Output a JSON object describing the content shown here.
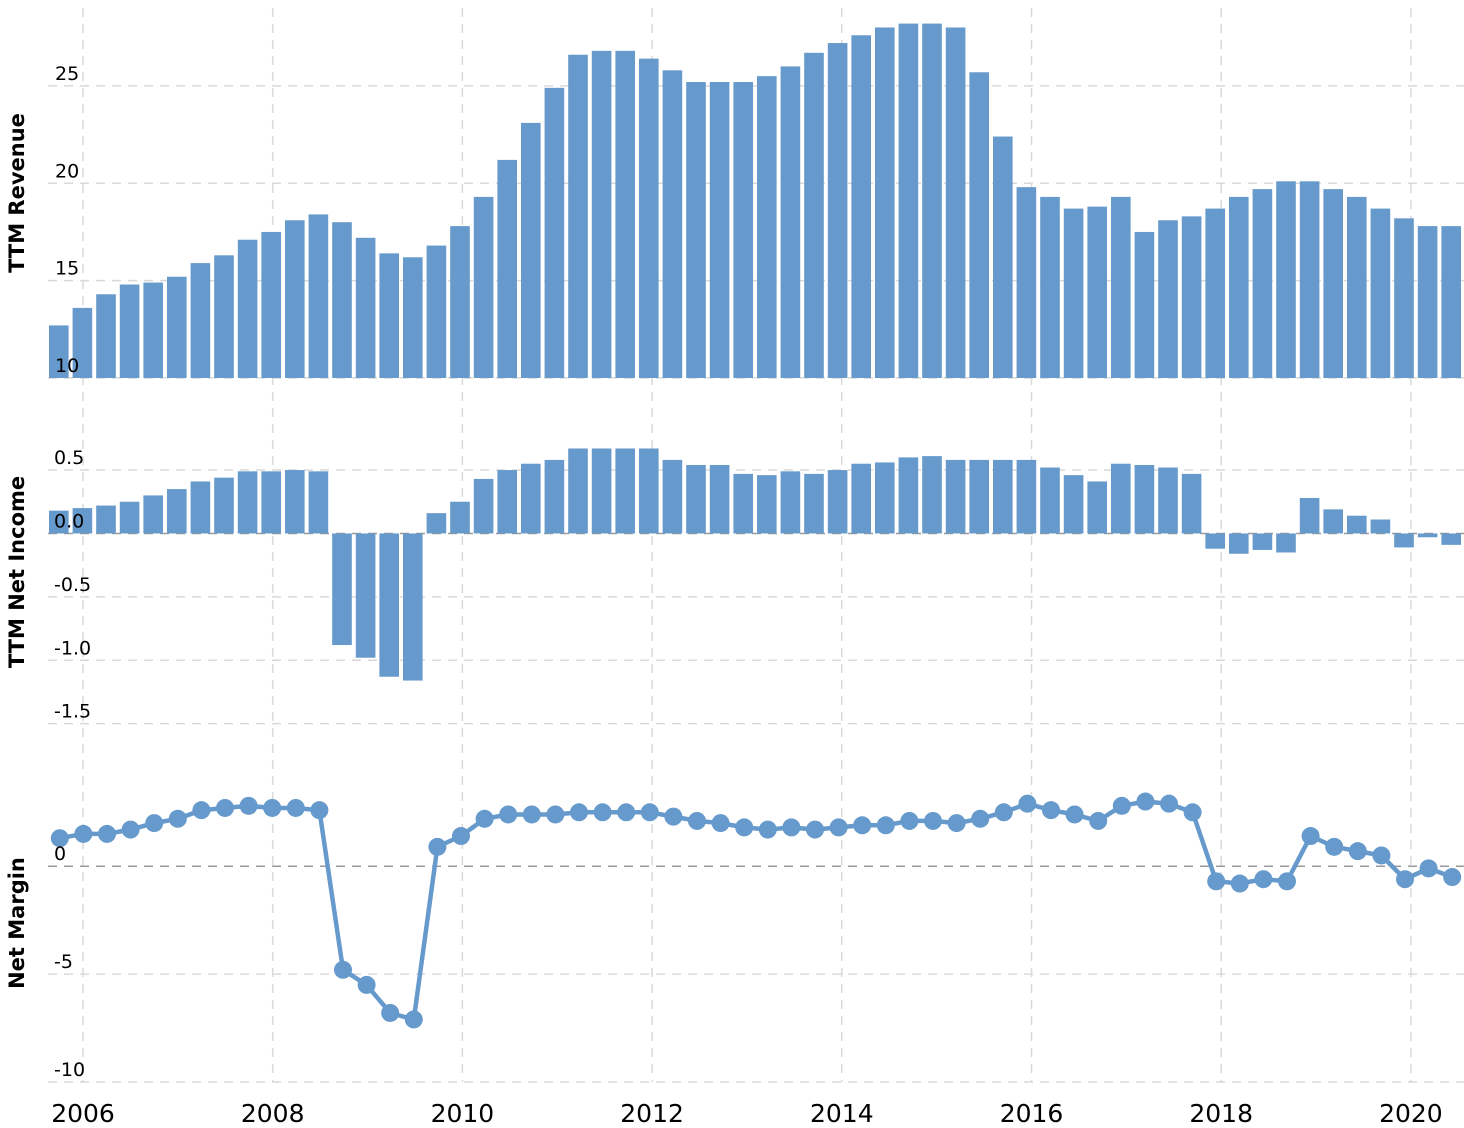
{
  "colors": {
    "series": "#6699cc",
    "grid": "#d9d9d9",
    "zero_line": "#9a9a9a"
  },
  "x_axis": {
    "tick_labels": [
      "2006",
      "2008",
      "2010",
      "2012",
      "2014",
      "2016",
      "2018",
      "2020"
    ],
    "grid": true
  },
  "chart_data": [
    {
      "type": "bar",
      "ylabel": "TTM Revenue",
      "ylim": [
        10,
        29
      ],
      "yticks": [
        10,
        15,
        20,
        25
      ],
      "grid": true,
      "x_start": 2005.75,
      "x_step": 0.25,
      "values": [
        12.7,
        13.6,
        14.3,
        14.8,
        14.9,
        15.2,
        15.9,
        16.3,
        17.1,
        17.5,
        18.1,
        18.4,
        18.0,
        17.2,
        16.4,
        16.2,
        16.8,
        17.8,
        19.3,
        21.2,
        23.1,
        24.9,
        26.6,
        26.8,
        26.8,
        26.4,
        25.8,
        25.2,
        25.2,
        25.2,
        25.5,
        26.0,
        26.7,
        27.2,
        27.6,
        28.0,
        28.2,
        28.2,
        28.0,
        25.7,
        22.4,
        19.8,
        19.3,
        18.7,
        18.8,
        19.3,
        17.5,
        18.1,
        18.3,
        18.7,
        19.3,
        19.7,
        20.1,
        20.1,
        19.7,
        19.3,
        18.7,
        18.2,
        17.8,
        17.8
      ]
    },
    {
      "type": "bar",
      "ylabel": "TTM Net Income",
      "ylim": [
        -1.55,
        0.95
      ],
      "yticks": [
        -1.5,
        -1.0,
        -0.5,
        0.0,
        0.5
      ],
      "ytick_labels": [
        "-1.5",
        "-1.0",
        "-0.5",
        "0.0",
        "0.5"
      ],
      "grid": true,
      "x_start": 2005.75,
      "x_step": 0.25,
      "values": [
        0.18,
        0.2,
        0.22,
        0.25,
        0.3,
        0.35,
        0.41,
        0.44,
        0.49,
        0.49,
        0.5,
        0.49,
        -0.88,
        -0.98,
        -1.13,
        -1.16,
        0.16,
        0.25,
        0.43,
        0.5,
        0.55,
        0.58,
        0.67,
        0.67,
        0.67,
        0.67,
        0.58,
        0.54,
        0.54,
        0.47,
        0.46,
        0.49,
        0.47,
        0.5,
        0.55,
        0.56,
        0.6,
        0.61,
        0.58,
        0.58,
        0.58,
        0.58,
        0.52,
        0.46,
        0.41,
        0.55,
        0.54,
        0.52,
        0.47,
        -0.12,
        -0.16,
        -0.13,
        -0.15,
        0.28,
        0.19,
        0.14,
        0.11,
        -0.11,
        -0.03,
        -0.09
      ]
    },
    {
      "type": "line",
      "ylabel": "Net Margin",
      "ylim": [
        -10,
        4.6
      ],
      "yticks": [
        -10,
        -5,
        0
      ],
      "grid": true,
      "markers": true,
      "x_start": 2005.75,
      "x_step": 0.25,
      "values": [
        1.3,
        1.5,
        1.5,
        1.7,
        2.0,
        2.2,
        2.6,
        2.7,
        2.8,
        2.7,
        2.7,
        2.6,
        -4.8,
        -5.5,
        -6.8,
        -7.1,
        0.9,
        1.4,
        2.2,
        2.4,
        2.4,
        2.4,
        2.5,
        2.5,
        2.5,
        2.5,
        2.3,
        2.1,
        2.0,
        1.8,
        1.7,
        1.8,
        1.7,
        1.8,
        1.9,
        1.9,
        2.1,
        2.1,
        2.0,
        2.2,
        2.5,
        2.9,
        2.6,
        2.4,
        2.1,
        2.8,
        3.0,
        2.9,
        2.5,
        -0.7,
        -0.8,
        -0.6,
        -0.7,
        1.4,
        0.9,
        0.7,
        0.5,
        -0.6,
        -0.1,
        -0.5
      ]
    }
  ]
}
